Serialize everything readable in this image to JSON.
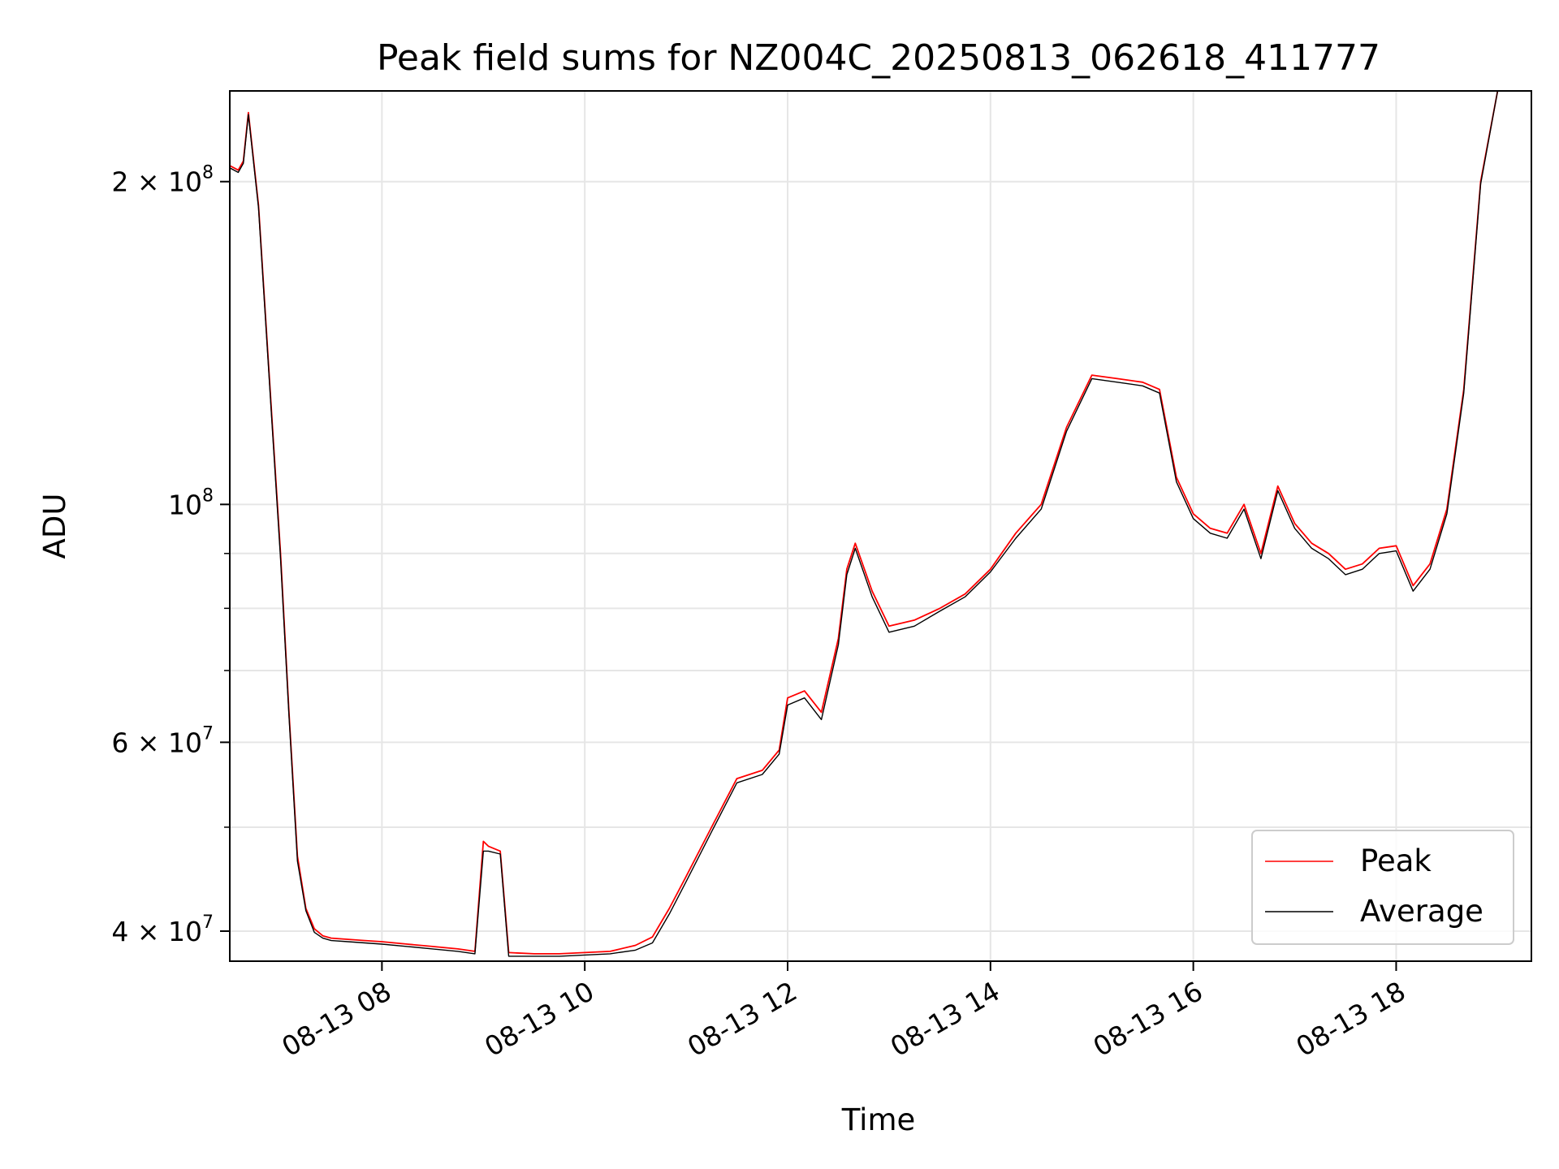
{
  "chart_data": {
    "type": "line",
    "title": "Peak field sums for NZ004C_20250813_062618_411777",
    "xlabel": "Time",
    "ylabel": "ADU",
    "y_scale": "log",
    "grid": true,
    "legend_position": "bottom-right",
    "xlim": [
      "2025-08-13 06:30",
      "2025-08-13 19:20"
    ],
    "ylim": [
      37500000,
      243000000
    ],
    "x_ticks": [
      {
        "value": "2025-08-13 08:00",
        "label": "08-13 08"
      },
      {
        "value": "2025-08-13 10:00",
        "label": "08-13 10"
      },
      {
        "value": "2025-08-13 12:00",
        "label": "08-13 12"
      },
      {
        "value": "2025-08-13 14:00",
        "label": "08-13 14"
      },
      {
        "value": "2025-08-13 16:00",
        "label": "08-13 16"
      },
      {
        "value": "2025-08-13 18:00",
        "label": "08-13 18"
      }
    ],
    "y_major_ticks": [
      {
        "value": 40000000,
        "mantissa": "4 × 10",
        "exp": "7"
      },
      {
        "value": 60000000,
        "mantissa": "6 × 10",
        "exp": "7"
      },
      {
        "value": 100000000,
        "mantissa": "10",
        "exp": "8"
      },
      {
        "value": 200000000,
        "mantissa": "2 × 10",
        "exp": "8"
      }
    ],
    "y_minor_grid": [
      50000000,
      70000000,
      80000000,
      90000000
    ],
    "series": [
      {
        "name": "Peak",
        "color": "#ff0000",
        "x": [
          "06:30",
          "06:35",
          "06:38",
          "06:41",
          "06:47",
          "06:55",
          "07:00",
          "07:05",
          "07:10",
          "07:15",
          "07:20",
          "07:25",
          "07:30",
          "07:40",
          "07:50",
          "08:00",
          "08:15",
          "08:30",
          "08:45",
          "08:55",
          "09:00",
          "09:03",
          "09:10",
          "09:15",
          "09:30",
          "09:45",
          "10:00",
          "10:15",
          "10:30",
          "10:40",
          "10:50",
          "11:00",
          "11:15",
          "11:30",
          "11:45",
          "11:55",
          "12:00",
          "12:10",
          "12:20",
          "12:30",
          "12:35",
          "12:40",
          "12:50",
          "13:00",
          "13:15",
          "13:30",
          "13:45",
          "14:00",
          "14:15",
          "14:30",
          "14:45",
          "15:00",
          "15:15",
          "15:30",
          "15:40",
          "15:50",
          "16:00",
          "16:10",
          "16:20",
          "16:30",
          "16:40",
          "16:50",
          "17:00",
          "17:10",
          "17:20",
          "17:30",
          "17:40",
          "17:50",
          "18:00",
          "18:10",
          "18:20",
          "18:30",
          "18:40",
          "18:50",
          "19:00",
          "19:10",
          "19:20"
        ],
        "values": [
          207000000,
          205000000,
          209000000,
          232000000,
          190000000,
          120000000,
          90000000,
          64000000,
          47000000,
          42000000,
          40200000,
          39600000,
          39400000,
          39300000,
          39200000,
          39100000,
          38900000,
          38700000,
          38500000,
          38300000,
          48500000,
          48000000,
          47500000,
          38200000,
          38100000,
          38100000,
          38200000,
          38300000,
          38800000,
          39500000,
          42000000,
          45000000,
          50000000,
          55500000,
          56500000,
          59000000,
          66000000,
          67000000,
          64000000,
          75000000,
          87000000,
          92000000,
          83000000,
          77000000,
          78000000,
          80000000,
          82500000,
          87000000,
          94000000,
          100000000,
          118000000,
          132000000,
          131000000,
          130000000,
          128000000,
          106000000,
          98000000,
          95000000,
          94000000,
          100000000,
          90000000,
          104000000,
          96000000,
          92000000,
          90000000,
          87000000,
          88000000,
          91000000,
          91500000,
          84000000,
          88000000,
          99000000,
          128000000,
          200000000,
          243000000,
          243000000,
          243000000
        ]
      },
      {
        "name": "Average",
        "color": "#000000",
        "x": [
          "06:30",
          "06:35",
          "06:38",
          "06:41",
          "06:47",
          "06:55",
          "07:00",
          "07:05",
          "07:10",
          "07:15",
          "07:20",
          "07:25",
          "07:30",
          "07:40",
          "07:50",
          "08:00",
          "08:15",
          "08:30",
          "08:45",
          "08:55",
          "09:00",
          "09:03",
          "09:10",
          "09:15",
          "09:30",
          "09:45",
          "10:00",
          "10:15",
          "10:30",
          "10:40",
          "10:50",
          "11:00",
          "11:15",
          "11:30",
          "11:45",
          "11:55",
          "12:00",
          "12:10",
          "12:20",
          "12:30",
          "12:35",
          "12:40",
          "12:50",
          "13:00",
          "13:15",
          "13:30",
          "13:45",
          "14:00",
          "14:15",
          "14:30",
          "14:45",
          "15:00",
          "15:15",
          "15:30",
          "15:40",
          "15:50",
          "16:00",
          "16:10",
          "16:20",
          "16:30",
          "16:40",
          "16:50",
          "17:00",
          "17:10",
          "17:20",
          "17:30",
          "17:40",
          "17:50",
          "18:00",
          "18:10",
          "18:20",
          "18:30",
          "18:40",
          "18:50",
          "19:00",
          "19:10",
          "19:20"
        ],
        "values": [
          206000000,
          204000000,
          208000000,
          231000000,
          189000000,
          119000000,
          89000000,
          63500000,
          46500000,
          41800000,
          39900000,
          39400000,
          39200000,
          39100000,
          39000000,
          38900000,
          38700000,
          38500000,
          38300000,
          38100000,
          47500000,
          47500000,
          47200000,
          37900000,
          37900000,
          37900000,
          38000000,
          38100000,
          38400000,
          39000000,
          41500000,
          44500000,
          49500000,
          55000000,
          56000000,
          58500000,
          65000000,
          66000000,
          63000000,
          74000000,
          86000000,
          91000000,
          82000000,
          76000000,
          77000000,
          79500000,
          82000000,
          86500000,
          93000000,
          99000000,
          117000000,
          131000000,
          130000000,
          129000000,
          127000000,
          105000000,
          97000000,
          94000000,
          93000000,
          99000000,
          89000000,
          103000000,
          95000000,
          91000000,
          89000000,
          86000000,
          87000000,
          90000000,
          90500000,
          83000000,
          87000000,
          98000000,
          127000000,
          199000000,
          243000000,
          243000000,
          243000000
        ]
      }
    ]
  }
}
